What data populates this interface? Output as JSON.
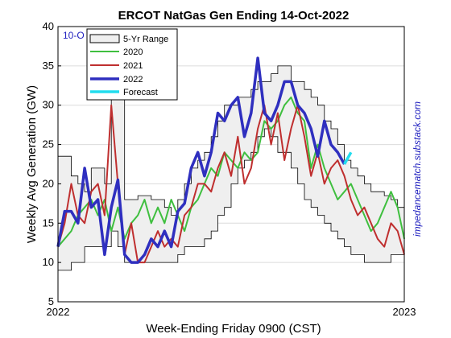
{
  "chart_data": {
    "type": "line",
    "title": "ERCOT NatGas Gen Ending 14-Oct-2022",
    "xlabel": "Week-Ending Friday 0900 (CST)",
    "ylabel": "Weekly Avg Generation (GW)",
    "side_note": "impedancematch.substack.com",
    "date_tag": "10-O",
    "ylim": [
      5,
      40
    ],
    "yticks": [
      "5",
      "10",
      "15",
      "20",
      "25",
      "30",
      "35",
      "40"
    ],
    "xticks": [
      "2022",
      "2023"
    ],
    "xlim_weeks": [
      0,
      52
    ],
    "grid": true,
    "legend_position": "top-left",
    "colors": {
      "range_fill": "#efefef",
      "range_edge": "#000000",
      "2020": "#3fbf3f",
      "2021": "#bf2f2f",
      "2022": "#2f2fbf",
      "Forecast": "#22ddee"
    },
    "legend": [
      "5-Yr Range",
      "2020",
      "2021",
      "2022",
      "Forecast"
    ],
    "range_low": [
      9,
      9,
      10,
      10,
      12,
      12,
      12,
      12,
      14,
      12,
      10,
      10,
      10,
      10,
      10,
      10,
      10,
      10,
      11,
      12,
      12,
      12,
      13,
      14,
      16,
      17,
      20,
      22,
      23,
      24,
      26,
      27,
      26,
      24,
      24,
      22,
      20,
      18,
      17,
      16,
      15,
      14,
      13,
      12,
      11,
      11,
      10,
      10,
      10,
      10,
      11,
      11,
      11
    ],
    "range_high": [
      23.5,
      23.5,
      21,
      20,
      19,
      22,
      22,
      20,
      31,
      31,
      18,
      18,
      18.5,
      18.5,
      18,
      18,
      17,
      16,
      18,
      20,
      22,
      23,
      24,
      26,
      28,
      30,
      30,
      31,
      31,
      32,
      33,
      33,
      34,
      35,
      35,
      33,
      33,
      32,
      31,
      30,
      28,
      27,
      25,
      23,
      22,
      21,
      20,
      19,
      19,
      18.5,
      18,
      17,
      16
    ],
    "series": [
      {
        "name": "2020",
        "values": [
          12,
          13,
          14,
          16,
          17,
          18,
          16,
          18,
          14,
          17,
          13,
          15,
          16,
          18,
          15,
          17,
          15,
          18,
          16,
          14,
          17,
          18,
          20,
          22,
          21,
          24,
          23,
          22,
          24,
          23,
          24,
          28,
          27,
          28,
          30,
          31,
          29,
          28,
          22,
          25,
          22,
          20,
          18,
          19,
          20,
          18,
          16,
          14,
          15,
          17,
          19,
          17,
          13
        ]
      },
      {
        "name": "2021",
        "values": [
          12,
          15,
          20,
          16,
          15,
          19,
          20,
          16,
          30,
          20,
          11,
          15,
          10,
          10,
          12,
          14,
          12,
          13,
          12,
          16,
          17,
          20,
          20,
          19,
          22,
          24,
          21,
          26,
          20,
          22,
          27,
          30,
          25,
          29,
          23,
          27,
          30,
          26,
          21,
          24,
          20,
          22,
          23,
          21,
          18,
          16,
          17,
          15,
          13,
          12,
          15,
          14,
          11
        ]
      },
      {
        "name": "2022",
        "values": [
          12,
          16.5,
          16.5,
          15,
          22,
          17,
          18,
          11,
          17,
          20.5,
          11,
          10,
          10,
          11,
          13,
          12,
          14,
          12,
          16.5,
          17.5,
          22,
          24,
          21,
          24,
          29,
          28,
          30,
          31,
          26,
          29,
          36,
          29,
          28,
          30,
          33,
          33,
          30,
          29,
          27,
          23.5,
          28,
          25,
          24,
          22.5
        ]
      },
      {
        "name": "Forecast",
        "x_start": 43,
        "values": [
          22.5,
          24
        ]
      }
    ]
  }
}
